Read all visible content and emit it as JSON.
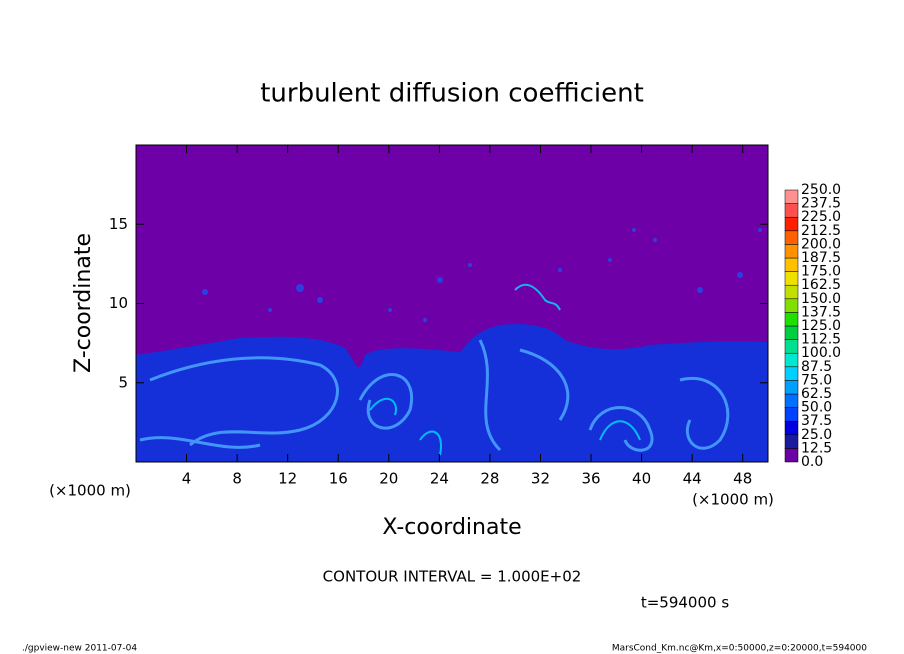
{
  "chart_data": {
    "type": "contour",
    "title": "turbulent diffusion coefficient",
    "x_label": "X-coordinate",
    "y_label": "Z-coordinate",
    "x_unit": "(×1000 m)",
    "y_unit": "(×1000 m)",
    "xlim": [
      0,
      50
    ],
    "xticks": [
      4,
      8,
      12,
      16,
      20,
      24,
      28,
      32,
      36,
      40,
      44,
      48
    ],
    "ylim": [
      0,
      20
    ],
    "yticks": [
      5,
      10,
      15
    ],
    "levels": [
      {
        "value": 0,
        "label": "0.0"
      },
      12.5,
      {
        "value": 25,
        "label": "25.0"
      },
      37.5,
      {
        "value": 50,
        "label": "50.0"
      },
      62.5,
      {
        "value": 75,
        "label": "75.0"
      },
      87.5,
      {
        "value": 100,
        "label": "100.0"
      },
      112.5,
      {
        "value": 125,
        "label": "125.0"
      },
      137.5,
      {
        "value": 150,
        "label": "150.0"
      },
      162.5,
      {
        "value": 175,
        "label": "175.0"
      },
      187.5,
      {
        "value": 200,
        "label": "200.0"
      },
      212.5,
      {
        "value": 225,
        "label": "225.0"
      },
      237.5,
      {
        "value": 250,
        "label": "250.0"
      }
    ],
    "level_colors": [
      "#6a00a6",
      "#1a1aa0",
      "#0000e0",
      "#0040ff",
      "#0070ff",
      "#00a0ff",
      "#00d0ff",
      "#00e8d0",
      "#00e090",
      "#00d040",
      "#20e000",
      "#80e000",
      "#c0e000",
      "#f0e000",
      "#ffc000",
      "#ff9000",
      "#ff6000",
      "#ff2000",
      "#ff5050",
      "#ff9090"
    ],
    "contour_interval": "CONTOUR INTERVAL = 1.000E+02",
    "time_label": "t=594000 s",
    "footer_left": "./gpview-new  2011-07-04",
    "footer_right": "MarsCond_Km.nc@Km,x=0:50000,z=0:20000,t=594000"
  }
}
